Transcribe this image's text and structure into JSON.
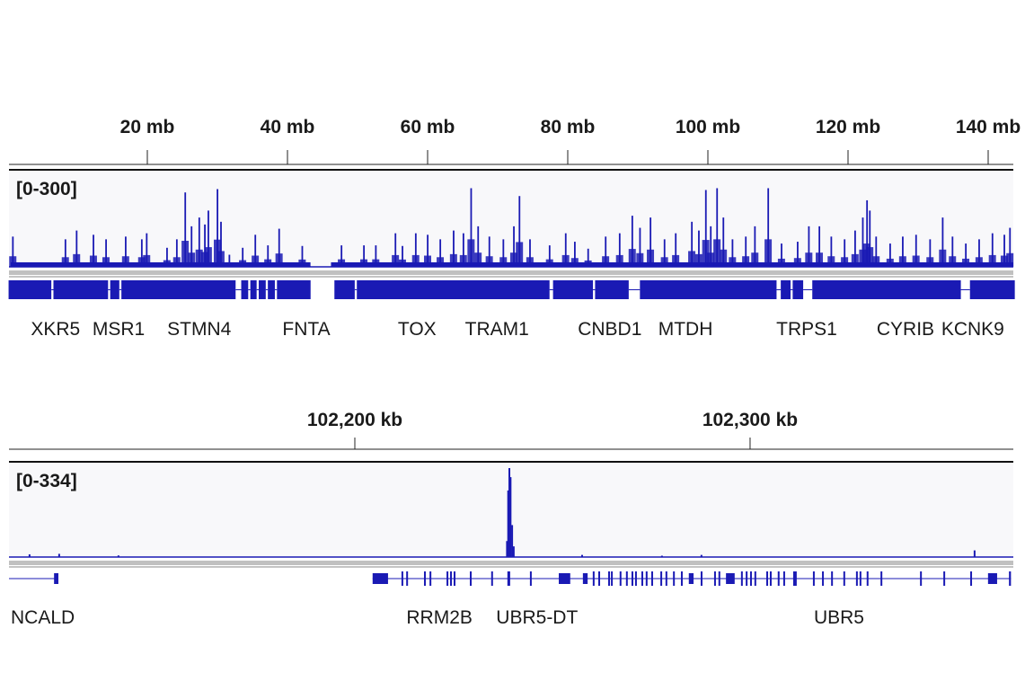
{
  "colors": {
    "signal": "#1a1ab4",
    "track_bg": "#f8f8fa",
    "separator": "#c0c0c0",
    "axis": "#222222"
  },
  "chart_data": [
    {
      "type": "area",
      "unit": "mb",
      "xlim": [
        0,
        145
      ],
      "ticks": [
        {
          "value": 20,
          "label": "20 mb"
        },
        {
          "value": 40,
          "label": "40 mb"
        },
        {
          "value": 60,
          "label": "60 mb"
        },
        {
          "value": 80,
          "label": "80 mb"
        },
        {
          "value": 100,
          "label": "100 mb"
        },
        {
          "value": 120,
          "label": "120 mb"
        },
        {
          "value": 140,
          "label": "140 mb"
        }
      ],
      "range_label": "[0-300]",
      "ylim": [
        0,
        300
      ],
      "baseline_signal": 15,
      "no_data_regions": [
        [
          43.3,
          46.2
        ]
      ],
      "peaks": [
        [
          0.8,
          100
        ],
        [
          8.3,
          91
        ],
        [
          9.9,
          120
        ],
        [
          12.3,
          106
        ],
        [
          14.1,
          91
        ],
        [
          16.9,
          100
        ],
        [
          19.2,
          91
        ],
        [
          19.9,
          111
        ],
        [
          22.8,
          63
        ],
        [
          24.2,
          91
        ],
        [
          25.4,
          246
        ],
        [
          26.3,
          134
        ],
        [
          27.4,
          163
        ],
        [
          28.2,
          140
        ],
        [
          28.7,
          186
        ],
        [
          30.0,
          257
        ],
        [
          30.5,
          149
        ],
        [
          31.7,
          40
        ],
        [
          33.6,
          63
        ],
        [
          35.4,
          106
        ],
        [
          37.2,
          71
        ],
        [
          38.8,
          126
        ],
        [
          42.1,
          69
        ],
        [
          47.7,
          71
        ],
        [
          50.9,
          71
        ],
        [
          52.6,
          71
        ],
        [
          55.4,
          111
        ],
        [
          56.4,
          69
        ],
        [
          58.3,
          111
        ],
        [
          60.0,
          106
        ],
        [
          61.8,
          91
        ],
        [
          63.7,
          120
        ],
        [
          65.1,
          111
        ],
        [
          66.2,
          260
        ],
        [
          67.2,
          134
        ],
        [
          68.8,
          100
        ],
        [
          70.8,
          91
        ],
        [
          72.3,
          134
        ],
        [
          73.1,
          234
        ],
        [
          74.6,
          91
        ],
        [
          77.4,
          71
        ],
        [
          79.7,
          111
        ],
        [
          81.0,
          83
        ],
        [
          82.9,
          60
        ],
        [
          85.4,
          100
        ],
        [
          87.4,
          111
        ],
        [
          89.2,
          169
        ],
        [
          90.3,
          129
        ],
        [
          91.8,
          163
        ],
        [
          93.8,
          91
        ],
        [
          95.4,
          111
        ],
        [
          97.7,
          149
        ],
        [
          98.7,
          120
        ],
        [
          99.7,
          254
        ],
        [
          100.4,
          134
        ],
        [
          101.3,
          260
        ],
        [
          102.2,
          163
        ],
        [
          103.5,
          91
        ],
        [
          105.4,
          100
        ],
        [
          106.7,
          134
        ],
        [
          108.6,
          260
        ],
        [
          110.5,
          77
        ],
        [
          112.8,
          83
        ],
        [
          114.4,
          134
        ],
        [
          115.9,
          134
        ],
        [
          117.6,
          100
        ],
        [
          119.5,
          91
        ],
        [
          121.0,
          120
        ],
        [
          122.1,
          163
        ],
        [
          122.7,
          220
        ],
        [
          123.1,
          186
        ],
        [
          124.0,
          100
        ],
        [
          126.0,
          77
        ],
        [
          127.8,
          100
        ],
        [
          129.7,
          106
        ],
        [
          131.7,
          91
        ],
        [
          133.5,
          163
        ],
        [
          134.9,
          100
        ],
        [
          136.8,
          77
        ],
        [
          138.7,
          91
        ],
        [
          140.6,
          111
        ],
        [
          142.3,
          106
        ],
        [
          143.1,
          129
        ]
      ],
      "gene_regions": [
        [
          0.2,
          43.3
        ],
        [
          46.7,
          143.8
        ]
      ],
      "gene_gaps": [
        [
          6.3,
          6.6
        ],
        [
          14.4,
          14.7
        ],
        [
          16.0,
          16.3
        ],
        [
          32.6,
          33.4
        ],
        [
          34.4,
          34.7
        ],
        [
          35.6,
          35.9
        ],
        [
          36.9,
          37.2
        ],
        [
          38.2,
          38.5
        ],
        [
          49.6,
          49.9
        ],
        [
          77.4,
          77.9
        ],
        [
          83.6,
          83.9
        ],
        [
          88.7,
          90.3
        ],
        [
          109.8,
          110.4
        ],
        [
          111.8,
          112.1
        ],
        [
          113.6,
          114.9
        ],
        [
          136.1,
          137.4
        ]
      ],
      "genes": [
        {
          "name": "XKR5",
          "pos": 6.9
        },
        {
          "name": "MSR1",
          "pos": 15.9
        },
        {
          "name": "STMN4",
          "pos": 27.4
        },
        {
          "name": "FNTA",
          "pos": 42.7
        },
        {
          "name": "TOX",
          "pos": 58.5
        },
        {
          "name": "TRAM1",
          "pos": 69.9
        },
        {
          "name": "CNBD1",
          "pos": 86.0
        },
        {
          "name": "MTDH",
          "pos": 96.8
        },
        {
          "name": "TRPS1",
          "pos": 114.1
        },
        {
          "name": "CYRIB",
          "pos": 128.2
        },
        {
          "name": "KCNK9",
          "pos": 137.8
        }
      ]
    },
    {
      "type": "area",
      "unit": "kb",
      "xlim": [
        102112.5,
        102366.6
      ],
      "ticks": [
        {
          "value": 102200,
          "label": "102,200 kb"
        },
        {
          "value": 102300,
          "label": "102,300 kb"
        }
      ],
      "range_label": "[0-334]",
      "ylim": [
        0,
        334
      ],
      "points": [
        [
          102117.7,
          10
        ],
        [
          102125.2,
          12
        ],
        [
          102140.2,
          6
        ],
        [
          102238.5,
          60
        ],
        [
          102238.8,
          250
        ],
        [
          102239.1,
          334
        ],
        [
          102239.4,
          300
        ],
        [
          102239.8,
          120
        ],
        [
          102240.2,
          40
        ],
        [
          102257.5,
          8
        ],
        [
          102277.7,
          5
        ],
        [
          102287.7,
          8
        ],
        [
          102356.8,
          25
        ]
      ],
      "transcripts": [
        {
          "span": [
            102112.5,
            102125.0
          ],
          "exons": [
            [
              102123.9,
              102125.0
            ]
          ]
        },
        {
          "span": [
            102204.5,
            102366.0
          ],
          "exons": [
            [
              102204.5,
              102208.4
            ],
            [
              102211.8,
              102212.2
            ],
            [
              102213.0,
              102213.4
            ],
            [
              102217.5,
              102217.9
            ],
            [
              102218.9,
              102219.3
            ],
            [
              102223.2,
              102223.6
            ],
            [
              102224.1,
              102224.5
            ],
            [
              102225.0,
              102225.4
            ],
            [
              102229.1,
              102229.5
            ],
            [
              102234.5,
              102234.9
            ],
            [
              102238.6,
              102239.3
            ],
            [
              102244.3,
              102244.7
            ],
            [
              102251.6,
              102254.5
            ],
            [
              102257.7,
              102258.9
            ],
            [
              102260.2,
              102260.6
            ],
            [
              102261.6,
              102262.0
            ],
            [
              102264.1,
              102264.5
            ],
            [
              102264.8,
              102265.2
            ],
            [
              102267.0,
              102267.4
            ],
            [
              102268.6,
              102269.0
            ],
            [
              102270.0,
              102270.4
            ],
            [
              102270.9,
              102271.3
            ],
            [
              102272.5,
              102272.9
            ],
            [
              102273.6,
              102274.0
            ],
            [
              102275.0,
              102275.4
            ],
            [
              102277.3,
              102277.7
            ],
            [
              102278.6,
              102279.0
            ],
            [
              102280.5,
              102280.9
            ],
            [
              102282.5,
              102282.9
            ],
            [
              102284.5,
              102285.7
            ],
            [
              102287.5,
              102287.9
            ],
            [
              102290.9,
              102291.3
            ],
            [
              102292.0,
              102292.4
            ],
            [
              102293.9,
              102296.1
            ],
            [
              102297.7,
              102298.1
            ],
            [
              102298.9,
              102299.3
            ],
            [
              102300.0,
              102300.4
            ],
            [
              102301.1,
              102301.5
            ],
            [
              102304.1,
              102304.5
            ],
            [
              102305.0,
              102305.4
            ],
            [
              102307.0,
              102307.4
            ],
            [
              102308.4,
              102308.8
            ],
            [
              102310.9,
              102311.8
            ],
            [
              102315.9,
              102316.3
            ],
            [
              102318.2,
              102318.6
            ],
            [
              102320.5,
              102320.9
            ],
            [
              102323.6,
              102324.0
            ],
            [
              102326.8,
              102327.2
            ],
            [
              102327.7,
              102328.1
            ],
            [
              102329.5,
              102329.9
            ],
            [
              102333.0,
              102333.4
            ],
            [
              102343.0,
              102343.4
            ],
            [
              102348.9,
              102349.3
            ],
            [
              102355.7,
              102356.1
            ],
            [
              102360.2,
              102362.5
            ],
            [
              102365.5,
              102366.0
            ]
          ]
        }
      ],
      "genes": [
        {
          "name": "NCALD",
          "pos": 102120.5
        },
        {
          "name": "RRM2B",
          "pos": 102221.4
        },
        {
          "name": "UBR5-DT",
          "pos": 102246.1
        },
        {
          "name": "UBR5",
          "pos": 102322.5
        }
      ]
    }
  ]
}
